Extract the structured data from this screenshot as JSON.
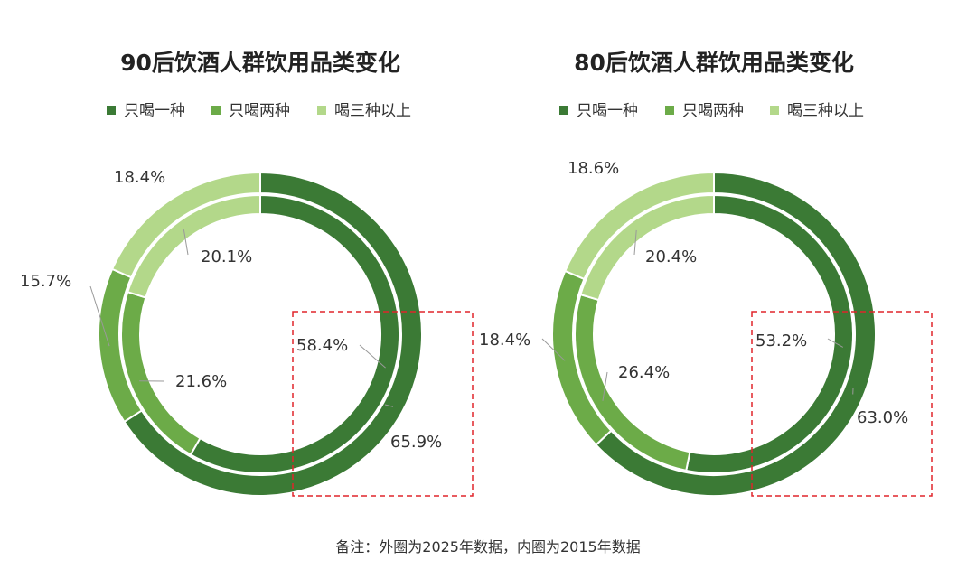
{
  "colors": {
    "series": [
      "#3b7a35",
      "#6cab48",
      "#b3d88a"
    ],
    "leader": "#999999",
    "highlight_box": "#e0252b",
    "separator": "#ffffff"
  },
  "chart_data": [
    {
      "type": "pie",
      "variant": "double-donut",
      "title": "90后饮酒人群饮用品类变化",
      "legend": [
        "只喝一种",
        "只喝两种",
        "喝三种以上"
      ],
      "legend_position": "top",
      "series": [
        {
          "name": "2025",
          "ring": "outer",
          "values": [
            65.9,
            15.7,
            18.4
          ],
          "labels": [
            "65.9%",
            "15.7%",
            "18.4%"
          ]
        },
        {
          "name": "2015",
          "ring": "inner",
          "values": [
            58.4,
            21.6,
            20.1
          ],
          "labels": [
            "58.4%",
            "21.6%",
            "20.1%"
          ]
        }
      ]
    },
    {
      "type": "pie",
      "variant": "double-donut",
      "title": "80后饮酒人群饮用品类变化",
      "legend": [
        "只喝一种",
        "只喝两种",
        "喝三种以上"
      ],
      "legend_position": "top",
      "series": [
        {
          "name": "2025",
          "ring": "outer",
          "values": [
            63.0,
            18.4,
            18.6
          ],
          "labels": [
            "63.0%",
            "18.4%",
            "18.6%"
          ]
        },
        {
          "name": "2015",
          "ring": "inner",
          "values": [
            53.2,
            26.4,
            20.4
          ],
          "labels": [
            "53.2%",
            "26.4%",
            "20.4%"
          ]
        }
      ]
    }
  ],
  "footnote": "备注：外圈为2025年数据，内圈为2015年数据"
}
